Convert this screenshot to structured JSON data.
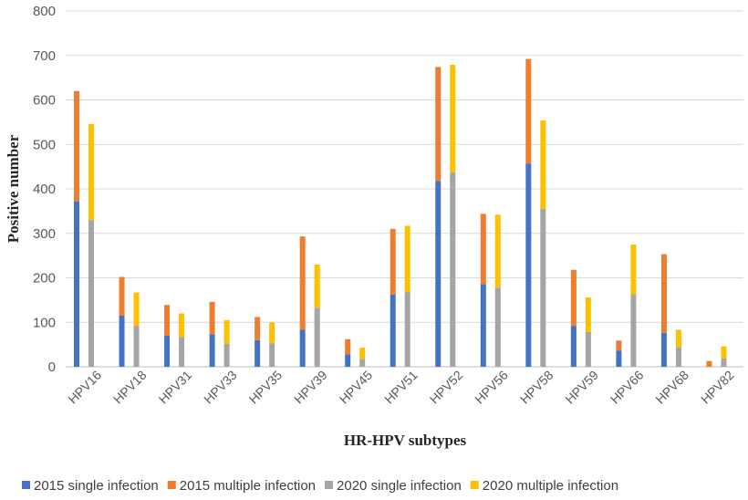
{
  "chart_data": {
    "type": "bar",
    "stacked": true,
    "categories": [
      "HPV16",
      "HPV18",
      "HPV31",
      "HPV33",
      "HPV35",
      "HPV39",
      "HPV45",
      "HPV51",
      "HPV52",
      "HPV56",
      "HPV58",
      "HPV59",
      "HPV66",
      "HPV68",
      "HPV82"
    ],
    "groups": [
      "2015",
      "2020"
    ],
    "series": [
      {
        "name": "2015 single infection",
        "group": "2015",
        "color": "#4472C4",
        "values": [
          372,
          115,
          70,
          73,
          60,
          83,
          28,
          162,
          418,
          186,
          457,
          92,
          36,
          76,
          0
        ]
      },
      {
        "name": "2015 multiple infection",
        "group": "2015",
        "color": "#ED7D31",
        "values": [
          248,
          87,
          69,
          73,
          52,
          210,
          34,
          148,
          256,
          158,
          235,
          126,
          23,
          177,
          13
        ]
      },
      {
        "name": "2020 single infection",
        "group": "2020",
        "color": "#A5A5A5",
        "values": [
          330,
          92,
          67,
          52,
          53,
          133,
          18,
          168,
          437,
          178,
          355,
          78,
          163,
          44,
          19
        ]
      },
      {
        "name": "2020 multiple infection",
        "group": "2020",
        "color": "#FFC000",
        "values": [
          216,
          75,
          53,
          53,
          47,
          97,
          25,
          149,
          242,
          164,
          199,
          78,
          112,
          39,
          27
        ]
      }
    ],
    "xlabel": "HR-HPV subtypes",
    "ylabel": "Positive number",
    "ylim": [
      0,
      800
    ],
    "yticks": [
      0,
      100,
      200,
      300,
      400,
      500,
      600,
      700,
      800
    ],
    "grid": true,
    "legend_position": "bottom"
  }
}
